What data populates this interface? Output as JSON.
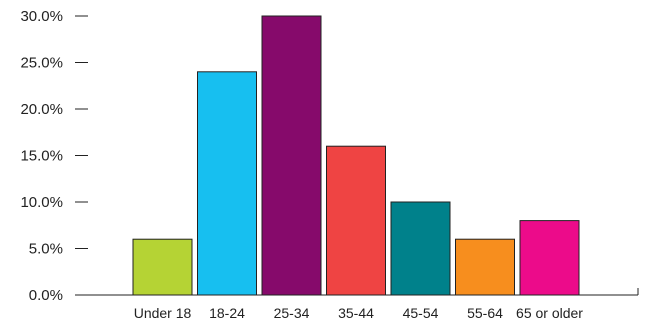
{
  "chart_data": {
    "type": "bar",
    "title": "",
    "xlabel": "",
    "ylabel": "",
    "categories": [
      "Under 18",
      "18-24",
      "25-34",
      "35-44",
      "45-54",
      "55-64",
      "65 or older"
    ],
    "values": [
      6.0,
      24.0,
      30.0,
      16.0,
      10.0,
      6.0,
      8.0
    ],
    "colors": [
      "#b5d334",
      "#17bff0",
      "#860a6b",
      "#ef4443",
      "#00818b",
      "#f78e1e",
      "#ec0b8a"
    ],
    "ylim": [
      0,
      30
    ],
    "y_ticks": [
      0,
      5,
      10,
      15,
      20,
      25,
      30
    ],
    "y_tick_labels": [
      "0.0%",
      "5.0%",
      "10.0%",
      "15.0%",
      "20.0%",
      "25.0%",
      "30.0%"
    ],
    "grid": false,
    "legend": "none"
  }
}
